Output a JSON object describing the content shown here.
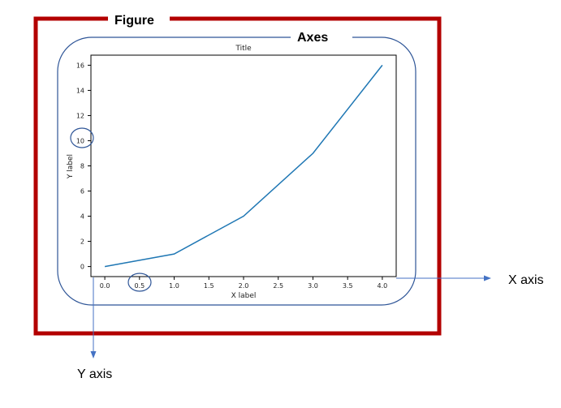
{
  "labels": {
    "figure": "Figure",
    "axes": "Axes",
    "x_axis": "X axis",
    "y_axis": "Y axis"
  },
  "colors": {
    "figure_border": "#b30000",
    "axes_border": "#2e5597",
    "line": "#1f77b4",
    "arrow": "#4472c4",
    "highlight_circle": "#2e5597"
  },
  "chart_data": {
    "type": "line",
    "title": "Title",
    "xlabel": "X label",
    "ylabel": "Y label",
    "x": [
      0,
      1,
      2,
      3,
      4
    ],
    "y": [
      0,
      1,
      4,
      9,
      16
    ],
    "xlim": [
      -0.2,
      4.2
    ],
    "ylim": [
      -0.8,
      16.8
    ],
    "xticks": [
      "0.0",
      "0.5",
      "1.0",
      "1.5",
      "2.0",
      "2.5",
      "3.0",
      "3.5",
      "4.0"
    ],
    "yticks": [
      "0",
      "2",
      "4",
      "6",
      "8",
      "10",
      "12",
      "14",
      "16"
    ],
    "grid": false,
    "highlighted_ticks": {
      "x": "0.5",
      "y": "10"
    }
  }
}
